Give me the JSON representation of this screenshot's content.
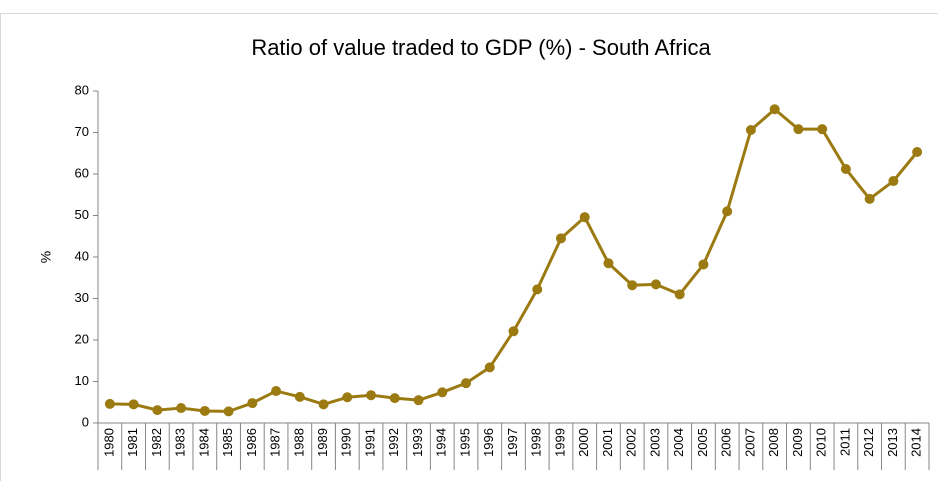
{
  "chart_data": {
    "type": "line",
    "title": "Ratio of value traded to GDP (%) - South Africa",
    "y_label": "%",
    "categories": [
      "1980",
      "1981",
      "1982",
      "1983",
      "1984",
      "1985",
      "1986",
      "1987",
      "1988",
      "1989",
      "1990",
      "1991",
      "1992",
      "1993",
      "1994",
      "1995",
      "1996",
      "1997",
      "1998",
      "1999",
      "2000",
      "2001",
      "2002",
      "2003",
      "2004",
      "2005",
      "2006",
      "2007",
      "2008",
      "2009",
      "2010",
      "2011",
      "2012",
      "2013",
      "2014"
    ],
    "series": [
      {
        "name": "South Africa",
        "color": "#9c7a12",
        "values": [
          4.6,
          4.5,
          3.1,
          3.6,
          2.9,
          2.8,
          4.8,
          7.7,
          6.3,
          4.5,
          6.2,
          6.7,
          6.0,
          5.5,
          7.4,
          9.6,
          13.4,
          22.1,
          32.2,
          44.5,
          49.6,
          38.5,
          33.2,
          33.4,
          31.0,
          38.2,
          51.0,
          70.6,
          75.6,
          70.8,
          70.8,
          61.2,
          54.0,
          58.3,
          65.3
        ]
      }
    ],
    "ylim": [
      0,
      80
    ],
    "yticks": [
      0,
      10,
      20,
      30,
      40,
      50,
      60,
      70,
      80
    ],
    "grid": false
  }
}
